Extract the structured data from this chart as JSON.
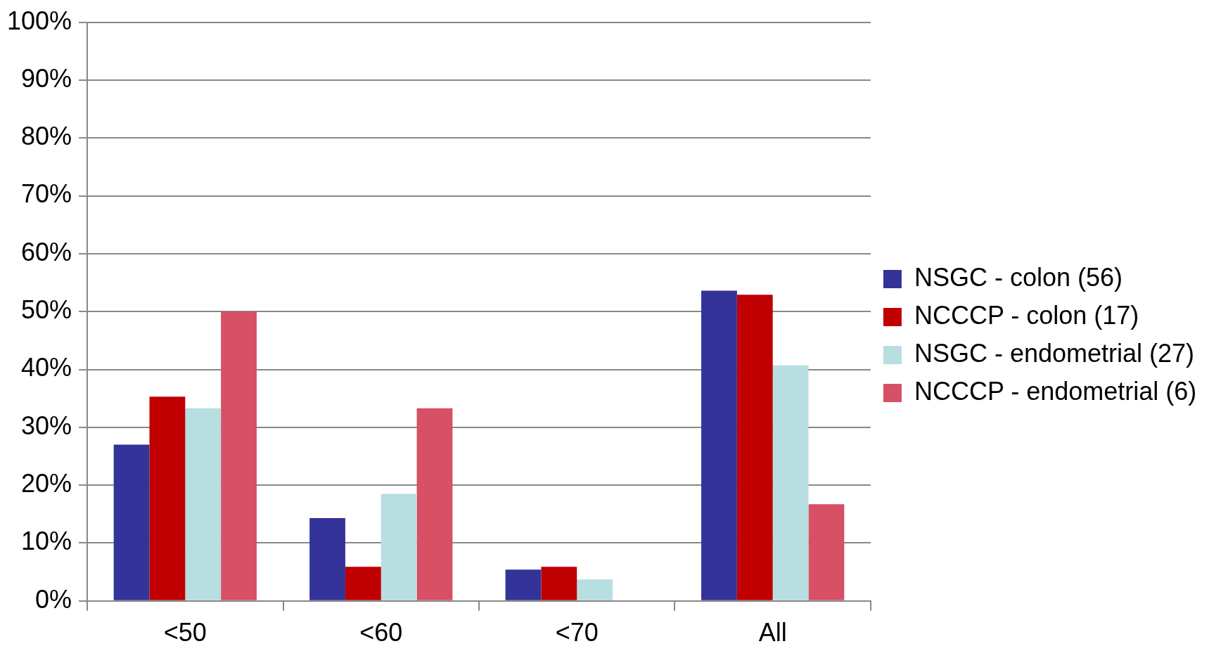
{
  "chart_data": {
    "type": "bar",
    "categories": [
      "<50",
      "<60",
      "<70",
      "All"
    ],
    "series": [
      {
        "name": "NSGC - colon (56)",
        "color": "#333399",
        "values": [
          27,
          14.3,
          5.4,
          53.6
        ]
      },
      {
        "name": "NCCCP - colon (17)",
        "color": "#c00000",
        "values": [
          35.3,
          5.9,
          5.9,
          52.9
        ]
      },
      {
        "name": "NSGC - endometrial (27)",
        "color": "#b7dee0",
        "values": [
          33.3,
          18.5,
          3.7,
          40.7
        ]
      },
      {
        "name": "NCCCP - endometrial (6)",
        "color": "#d75065",
        "values": [
          50,
          33.3,
          0,
          16.7
        ]
      }
    ],
    "ylim": [
      0,
      100
    ],
    "yticks": [
      {
        "value": 0,
        "label": "0%"
      },
      {
        "value": 10,
        "label": "10%"
      },
      {
        "value": 20,
        "label": "20%"
      },
      {
        "value": 30,
        "label": "30%"
      },
      {
        "value": 40,
        "label": "40%"
      },
      {
        "value": 50,
        "label": "50%"
      },
      {
        "value": 60,
        "label": "60%"
      },
      {
        "value": 70,
        "label": "70%"
      },
      {
        "value": 80,
        "label": "80%"
      },
      {
        "value": 90,
        "label": "90%"
      },
      {
        "value": 100,
        "label": "100%"
      }
    ],
    "grid": "y",
    "legend": "right"
  }
}
